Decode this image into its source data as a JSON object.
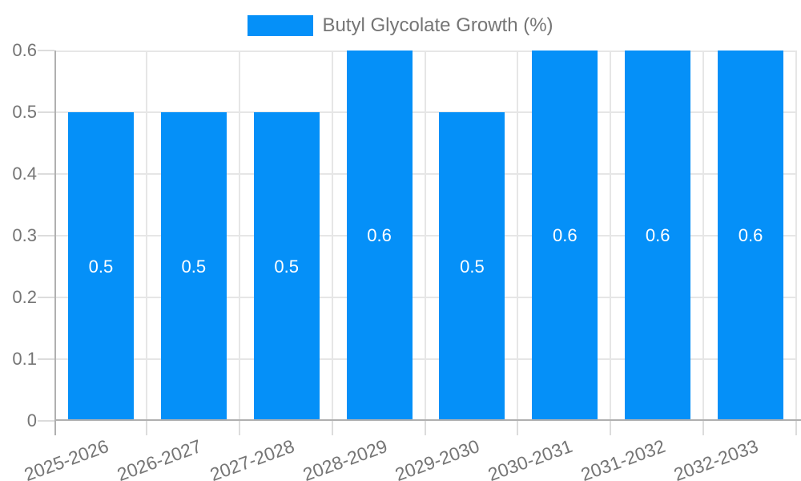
{
  "chart_data": {
    "type": "bar",
    "title": "Butyl Glycolate Growth (%)",
    "legend": {
      "position": "top",
      "entries": [
        "Butyl Glycolate Growth (%)"
      ]
    },
    "categories": [
      "2025-2026",
      "2026-2027",
      "2027-2028",
      "2028-2029",
      "2029-2030",
      "2030-2031",
      "2031-2032",
      "2032-2033"
    ],
    "series": [
      {
        "name": "Butyl Glycolate Growth (%)",
        "values": [
          0.5,
          0.5,
          0.5,
          0.6,
          0.5,
          0.6,
          0.6,
          0.6
        ]
      }
    ],
    "bar_labels": [
      "0.5",
      "0.5",
      "0.5",
      "0.6",
      "0.5",
      "0.6",
      "0.6",
      "0.6"
    ],
    "xlabel": "",
    "ylabel": "",
    "ylim": [
      0,
      0.6
    ],
    "yticks": [
      0,
      0.1,
      0.2,
      0.3,
      0.4,
      0.5,
      0.6
    ],
    "ytick_labels": [
      "0",
      "0.1",
      "0.2",
      "0.3",
      "0.4",
      "0.5",
      "0.6"
    ],
    "grid": true,
    "x_label_rotation_deg": -20
  },
  "colors": {
    "bar": "#0590f8",
    "grid": "#e6e6e6",
    "tick": "#dcdcdc",
    "axis": "#b0b0b0",
    "label_text": "#757575",
    "bar_label_text": "#ffffff",
    "background": "#ffffff"
  }
}
